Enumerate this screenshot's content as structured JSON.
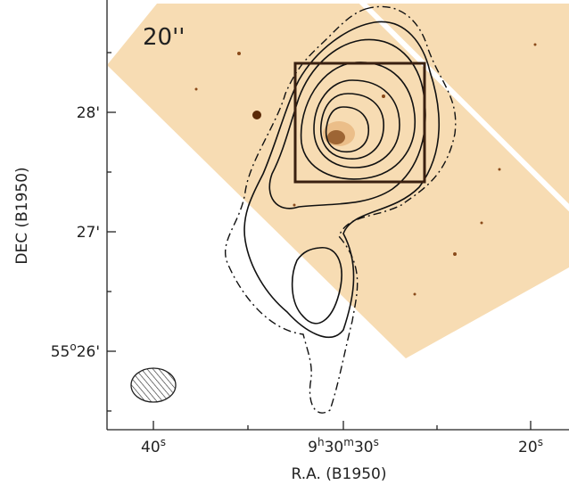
{
  "figure": {
    "panel_label": "20''",
    "xlabel": "R.A.  (B1950)",
    "ylabel": "DEC  (B1950)",
    "xticks": [
      [
        "40",
        "s"
      ],
      [
        "9",
        "h",
        "30",
        "m",
        "30",
        "s"
      ],
      [
        "20",
        "s"
      ]
    ],
    "yticks": [
      [
        "28'"
      ],
      [
        "27'"
      ],
      [
        "55",
        "o",
        "26'"
      ]
    ]
  }
}
